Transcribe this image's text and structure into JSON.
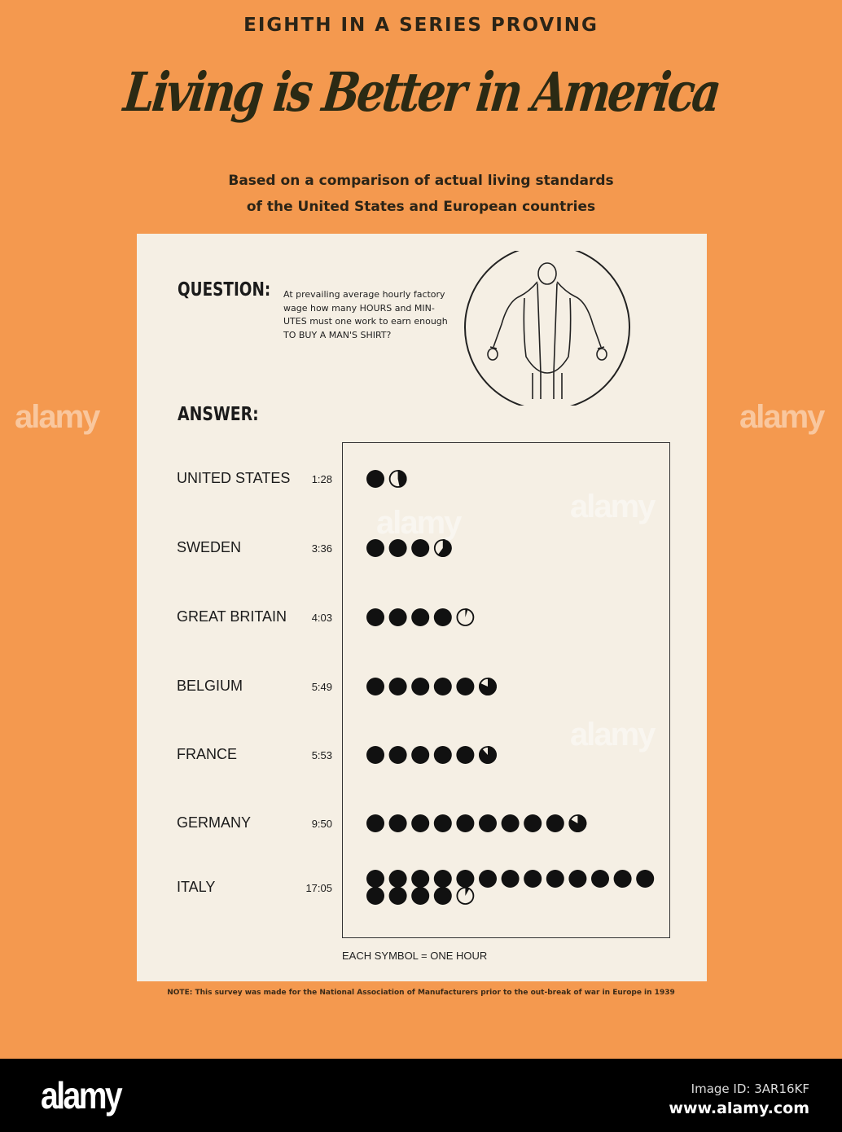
{
  "header": {
    "series_line": "EIGHTH IN A SERIES PROVING",
    "title": "Living is Better in America",
    "subtitle_line1": "Based on a comparison of actual living standards",
    "subtitle_line2": "of the United States and European countries"
  },
  "question": {
    "label": "QUESTION:",
    "text_lines": [
      "At prevailing average hourly factory",
      "wage how many HOURS and MIN-",
      "UTES must one work to earn enough",
      "TO BUY A MAN'S SHIRT?"
    ],
    "icon": "shirt-icon"
  },
  "answer_label": "ANSWER:",
  "chart_data": {
    "type": "pictograph",
    "unit_legend": "EACH SYMBOL = ONE HOUR",
    "symbol": "filled-circle",
    "partial_symbol": "pie-fraction-of-hour",
    "colors": {
      "symbol": "#111111",
      "background": "#F5EFE4",
      "page": "#F4994F"
    },
    "rows": [
      {
        "country": "UNITED STATES",
        "time": "1:28",
        "hours": 1,
        "minutes": 28
      },
      {
        "country": "SWEDEN",
        "time": "3:36",
        "hours": 3,
        "minutes": 36
      },
      {
        "country": "GREAT BRITAIN",
        "time": "4:03",
        "hours": 4,
        "minutes": 3
      },
      {
        "country": "BELGIUM",
        "time": "5:49",
        "hours": 5,
        "minutes": 49
      },
      {
        "country": "FRANCE",
        "time": "5:53",
        "hours": 5,
        "minutes": 53
      },
      {
        "country": "GERMANY",
        "time": "9:50",
        "hours": 9,
        "minutes": 50
      },
      {
        "country": "ITALY",
        "time": "17:05",
        "hours": 17,
        "minutes": 5
      }
    ]
  },
  "note": "NOTE: This survey was made for the National Association of Manufacturers prior to the out-break of war in Europe in 1939",
  "watermark": "alamy",
  "footer": {
    "logo": "alamy",
    "image_id": "Image ID: 3AR16KF",
    "url": "www.alamy.com"
  }
}
